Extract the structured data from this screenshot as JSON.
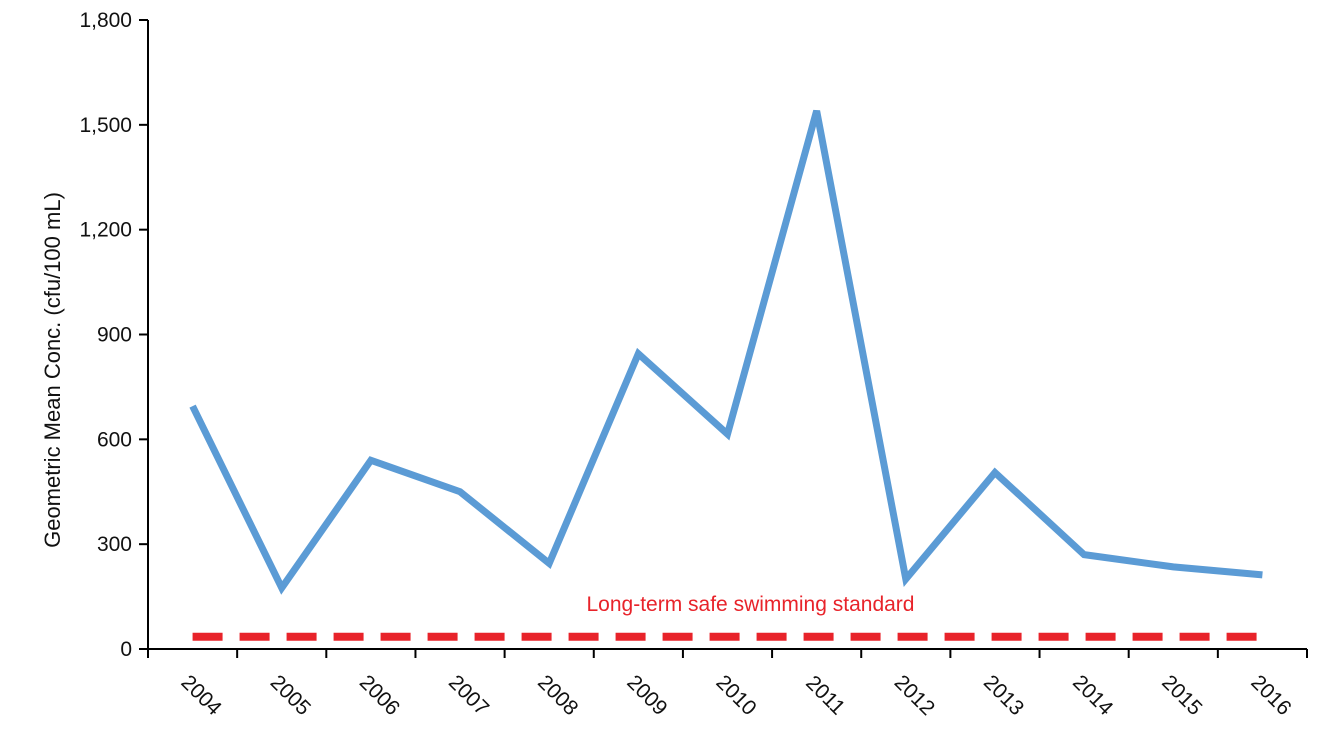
{
  "colors": {
    "series_line": "#5B9BD5",
    "standard_line": "#E8232A",
    "axis": "#000000",
    "background": "#ffffff"
  },
  "chart_data": {
    "type": "line",
    "title": "",
    "xlabel": "",
    "ylabel": "Geometric Mean Conc. (cfu/100 mL)",
    "categories": [
      "2004",
      "2005",
      "2006",
      "2007",
      "2008",
      "2009",
      "2010",
      "2011",
      "2012",
      "2013",
      "2014",
      "2015",
      "2016"
    ],
    "series": [
      {
        "values": [
          695,
          175,
          540,
          450,
          245,
          845,
          615,
          1540,
          200,
          505,
          270,
          235,
          212
        ]
      }
    ],
    "reference_lines": [
      {
        "label": "Long-term safe swimming standard",
        "value": 35,
        "style": "dashed"
      }
    ],
    "ylim": [
      0,
      1800
    ],
    "yticks": [
      0,
      300,
      600,
      900,
      1200,
      1500,
      1800
    ],
    "ytick_labels": [
      "0",
      "300",
      "600",
      "900",
      "1,200",
      "1,500",
      "1,800"
    ],
    "grid": false,
    "legend": "none"
  }
}
